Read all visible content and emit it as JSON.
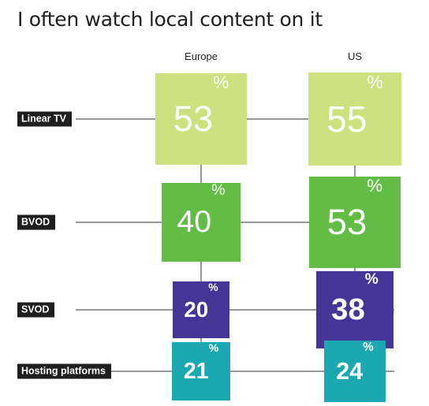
{
  "title": "I often watch local content on it",
  "chart_data": {
    "type": "table",
    "title": "I often watch local content on it",
    "columns": [
      "Europe",
      "US"
    ],
    "rows": [
      "Linear TV",
      "BVOD",
      "SVOD",
      "Hosting platforms"
    ],
    "series": [
      {
        "name": "Europe",
        "values": [
          53,
          40,
          20,
          21
        ]
      },
      {
        "name": "US",
        "values": [
          55,
          53,
          38,
          24
        ]
      }
    ],
    "unit": "%",
    "row_colors": [
      "#cde17f",
      "#62bc45",
      "#443596",
      "#1ba8b1"
    ]
  }
}
